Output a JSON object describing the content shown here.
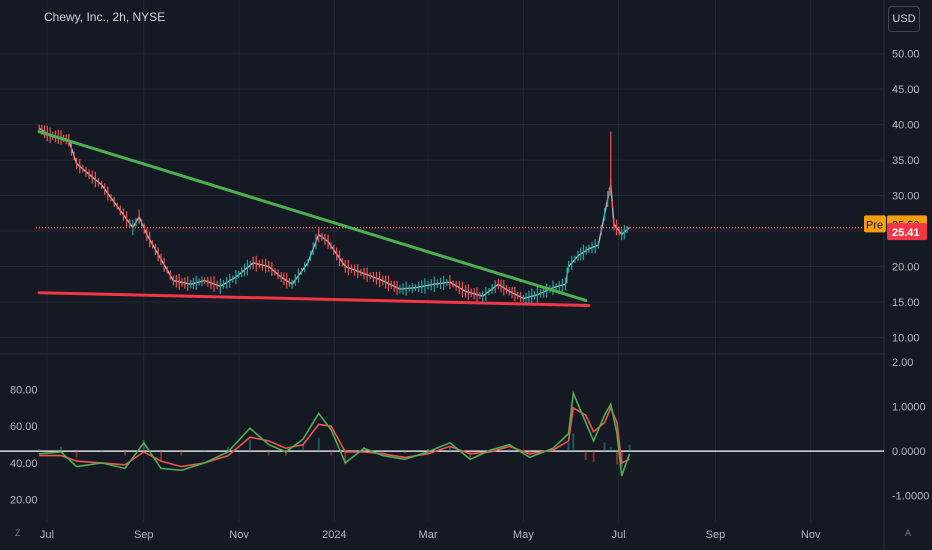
{
  "title": "Chewy, Inc., 2h, NYSE",
  "currency_button": "USD",
  "corner_left": "Z",
  "corner_right": "A",
  "colors": {
    "background": "#151924",
    "grid": "#232734",
    "text": "#b2b5be",
    "up": "#26a69a",
    "down": "#ef5350",
    "trend_green": "#4caf50",
    "trend_red": "#f23645",
    "pre_badge": "#f59d0d",
    "price_badge": "#f23645"
  },
  "price_axis": {
    "ticks": [
      "50.00",
      "45.00",
      "40.00",
      "35.00",
      "30.00",
      "25.00",
      "20.00",
      "15.00",
      "10.00"
    ],
    "ylim": [
      8.5,
      52.5
    ]
  },
  "price_labels": {
    "pre_tag": "Pre",
    "pre_value": "25.52",
    "last_value": "25.41"
  },
  "time_axis": {
    "labels": [
      "Jul",
      "Sep",
      "Nov",
      "2024",
      "Mar",
      "May",
      "Jul",
      "Sep",
      "Nov"
    ]
  },
  "left_osc_axis": {
    "ticks": [
      "80.00",
      "60.00",
      "40.00",
      "20.00"
    ]
  },
  "right_osc_axis": {
    "ticks": [
      "2.00",
      "1.0000",
      "0.0000",
      "-1.0000"
    ]
  },
  "chart_data": {
    "type": "line",
    "title": "Chewy, Inc., 2h, NYSE",
    "price_points": [
      [
        "2023-06-26",
        39.5
      ],
      [
        "2023-07-03",
        38.5
      ],
      [
        "2023-07-10",
        38.2
      ],
      [
        "2023-07-15",
        37.8
      ],
      [
        "2023-07-20",
        34.5
      ],
      [
        "2023-07-28",
        33.0
      ],
      [
        "2023-08-05",
        31.5
      ],
      [
        "2023-08-15",
        28.5
      ],
      [
        "2023-08-25",
        25.5
      ],
      [
        "2023-08-29",
        27.0
      ],
      [
        "2023-09-03",
        24.5
      ],
      [
        "2023-09-12",
        21.0
      ],
      [
        "2023-09-20",
        18.0
      ],
      [
        "2023-10-01",
        17.5
      ],
      [
        "2023-10-10",
        18.0
      ],
      [
        "2023-10-20",
        17.2
      ],
      [
        "2023-10-30",
        18.5
      ],
      [
        "2023-11-10",
        20.5
      ],
      [
        "2023-11-20",
        20.0
      ],
      [
        "2023-11-28",
        18.5
      ],
      [
        "2023-12-05",
        17.5
      ],
      [
        "2023-12-15",
        20.5
      ],
      [
        "2023-12-22",
        24.5
      ],
      [
        "2023-12-28",
        23.5
      ],
      [
        "2024-01-08",
        20.0
      ],
      [
        "2024-01-20",
        19.0
      ],
      [
        "2024-02-01",
        18.0
      ],
      [
        "2024-02-12",
        16.8
      ],
      [
        "2024-02-22",
        17.0
      ],
      [
        "2024-03-05",
        17.5
      ],
      [
        "2024-03-15",
        17.8
      ],
      [
        "2024-03-25",
        16.5
      ],
      [
        "2024-04-05",
        15.8
      ],
      [
        "2024-04-15",
        17.5
      ],
      [
        "2024-04-22",
        16.5
      ],
      [
        "2024-05-01",
        15.5
      ],
      [
        "2024-05-10",
        16.0
      ],
      [
        "2024-05-20",
        17.0
      ],
      [
        "2024-05-28",
        17.5
      ],
      [
        "2024-05-30",
        20.0
      ],
      [
        "2024-06-05",
        21.5
      ],
      [
        "2024-06-12",
        22.5
      ],
      [
        "2024-06-18",
        23.0
      ],
      [
        "2024-06-24",
        29.5
      ],
      [
        "2024-06-26",
        31.5
      ],
      [
        "2024-06-28",
        26.0
      ],
      [
        "2024-07-03",
        24.5
      ],
      [
        "2024-07-08",
        25.5
      ]
    ],
    "price_spike": {
      "date": "2024-06-26",
      "high": 39.0
    },
    "trendlines": [
      {
        "color": "green",
        "from": [
          "2023-06-26",
          39.0
        ],
        "to": [
          "2024-06-10",
          15.2
        ]
      },
      {
        "color": "red",
        "from": [
          "2023-06-26",
          16.3
        ],
        "to": [
          "2024-06-12",
          14.5
        ]
      }
    ],
    "horizontal_levels": [
      25.52,
      25.41
    ],
    "oscillator_left_axis": [
      10,
      95
    ],
    "oscillator_right_axis": [
      -1.5,
      2.0
    ],
    "oscillator_fast": [
      [
        "2023-06-26",
        45
      ],
      [
        "2023-07-10",
        46
      ],
      [
        "2023-07-20",
        38
      ],
      [
        "2023-08-05",
        40
      ],
      [
        "2023-08-20",
        37
      ],
      [
        "2023-09-01",
        51
      ],
      [
        "2023-09-12",
        37
      ],
      [
        "2023-09-25",
        36
      ],
      [
        "2023-10-10",
        40
      ],
      [
        "2023-10-25",
        46
      ],
      [
        "2023-11-08",
        59
      ],
      [
        "2023-11-20",
        50
      ],
      [
        "2023-12-01",
        46
      ],
      [
        "2023-12-12",
        53
      ],
      [
        "2023-12-22",
        67
      ],
      [
        "2023-12-30",
        58
      ],
      [
        "2024-01-08",
        40
      ],
      [
        "2024-01-20",
        48
      ],
      [
        "2024-02-01",
        44
      ],
      [
        "2024-02-15",
        42
      ],
      [
        "2024-03-01",
        46
      ],
      [
        "2024-03-15",
        51
      ],
      [
        "2024-03-28",
        42
      ],
      [
        "2024-04-10",
        47
      ],
      [
        "2024-04-22",
        50
      ],
      [
        "2024-05-05",
        43
      ],
      [
        "2024-05-20",
        48
      ],
      [
        "2024-05-30",
        56
      ],
      [
        "2024-06-02",
        78
      ],
      [
        "2024-06-10",
        62
      ],
      [
        "2024-06-15",
        52
      ],
      [
        "2024-06-22",
        66
      ],
      [
        "2024-06-26",
        72
      ],
      [
        "2024-06-30",
        56
      ],
      [
        "2024-07-03",
        33
      ],
      [
        "2024-07-08",
        45
      ]
    ],
    "oscillator_slow": [
      [
        "2023-06-26",
        44
      ],
      [
        "2023-07-10",
        44
      ],
      [
        "2023-07-20",
        41
      ],
      [
        "2023-08-05",
        40
      ],
      [
        "2023-08-20",
        39
      ],
      [
        "2023-09-01",
        46
      ],
      [
        "2023-09-12",
        41
      ],
      [
        "2023-09-25",
        38
      ],
      [
        "2023-10-10",
        40
      ],
      [
        "2023-10-25",
        44
      ],
      [
        "2023-11-08",
        54
      ],
      [
        "2023-11-20",
        52
      ],
      [
        "2023-12-01",
        48
      ],
      [
        "2023-12-12",
        50
      ],
      [
        "2023-12-22",
        61
      ],
      [
        "2023-12-30",
        60
      ],
      [
        "2024-01-08",
        46
      ],
      [
        "2024-01-20",
        46
      ],
      [
        "2024-02-01",
        45
      ],
      [
        "2024-02-15",
        43
      ],
      [
        "2024-03-01",
        45
      ],
      [
        "2024-03-15",
        49
      ],
      [
        "2024-03-28",
        45
      ],
      [
        "2024-04-10",
        46
      ],
      [
        "2024-04-22",
        49
      ],
      [
        "2024-05-05",
        45
      ],
      [
        "2024-05-20",
        47
      ],
      [
        "2024-05-30",
        52
      ],
      [
        "2024-06-02",
        70
      ],
      [
        "2024-06-10",
        66
      ],
      [
        "2024-06-15",
        57
      ],
      [
        "2024-06-22",
        62
      ],
      [
        "2024-06-26",
        70
      ],
      [
        "2024-06-30",
        62
      ],
      [
        "2024-07-03",
        40
      ],
      [
        "2024-07-08",
        42
      ]
    ],
    "oscillator_zero_line": 0.0
  }
}
